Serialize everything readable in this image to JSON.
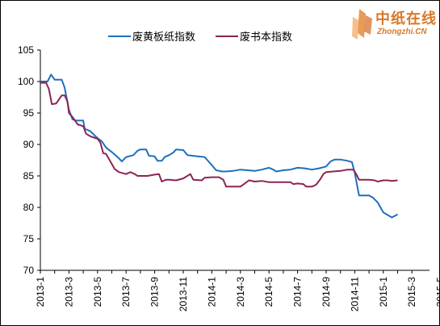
{
  "logo": {
    "name_cn": "中纸在线",
    "name_en": "Zhongzhi.CN",
    "color": "#d8782a"
  },
  "chart_data": {
    "type": "line",
    "title": "",
    "xlabel": "",
    "ylabel": "",
    "ylim": [
      70,
      105
    ],
    "yticks": [
      70,
      75,
      80,
      85,
      90,
      95,
      100,
      105
    ],
    "x_range": [
      "2013-1",
      "2015-6"
    ],
    "x_ticks": [
      "2013-1",
      "2013-3",
      "2013-5",
      "2013-7",
      "2013-9",
      "2013-11",
      "2014-1",
      "2014-3",
      "2014-5",
      "2014-7",
      "2014-9",
      "2014-11",
      "2015-1",
      "2015-3",
      "2015-5"
    ],
    "legend_position": "top",
    "grid": false,
    "series": [
      {
        "name": "废黄板纸指数",
        "color": "#1f6fbf",
        "points": [
          [
            0,
            100
          ],
          [
            0.5,
            100
          ],
          [
            0.75,
            101.1
          ],
          [
            1,
            100.3
          ],
          [
            1.5,
            100.3
          ],
          [
            1.7,
            99
          ],
          [
            2,
            95.5
          ],
          [
            2.25,
            94
          ],
          [
            2.5,
            93.8
          ],
          [
            3,
            93.8
          ],
          [
            3.1,
            92.5
          ],
          [
            3.5,
            92.1
          ],
          [
            4,
            91
          ],
          [
            4.3,
            90.5
          ],
          [
            4.6,
            89.5
          ],
          [
            5,
            88.8
          ],
          [
            5.3,
            88.2
          ],
          [
            5.5,
            87.8
          ],
          [
            5.7,
            87.3
          ],
          [
            6,
            88
          ],
          [
            6.5,
            88.3
          ],
          [
            6.8,
            89
          ],
          [
            7,
            89.2
          ],
          [
            7.4,
            89.2
          ],
          [
            7.6,
            88.2
          ],
          [
            8,
            88.1
          ],
          [
            8.2,
            87.4
          ],
          [
            8.5,
            87.4
          ],
          [
            8.7,
            88
          ],
          [
            9,
            88.3
          ],
          [
            9.3,
            88.7
          ],
          [
            9.5,
            89.2
          ],
          [
            10,
            89.1
          ],
          [
            10.3,
            88.3
          ],
          [
            11,
            88.1
          ],
          [
            11.5,
            88
          ],
          [
            12,
            86.7
          ],
          [
            12.3,
            85.9
          ],
          [
            12.7,
            85.7
          ],
          [
            13,
            85.7
          ],
          [
            13.5,
            85.8
          ],
          [
            14,
            86
          ],
          [
            14.5,
            85.9
          ],
          [
            15,
            85.8
          ],
          [
            15.5,
            86
          ],
          [
            16,
            86.3
          ],
          [
            16.3,
            86
          ],
          [
            16.5,
            85.7
          ],
          [
            17,
            85.9
          ],
          [
            17.5,
            86
          ],
          [
            18,
            86.3
          ],
          [
            18.5,
            86.2
          ],
          [
            19,
            86
          ],
          [
            19.5,
            86.2
          ],
          [
            20,
            86.5
          ],
          [
            20.3,
            87.3
          ],
          [
            20.6,
            87.6
          ],
          [
            21,
            87.6
          ],
          [
            21.5,
            87.4
          ],
          [
            21.8,
            87.2
          ],
          [
            22,
            85.5
          ],
          [
            22.3,
            81.9
          ],
          [
            23,
            81.9
          ],
          [
            23.3,
            81.5
          ],
          [
            23.6,
            80.8
          ],
          [
            24,
            79.2
          ],
          [
            24.3,
            78.8
          ],
          [
            24.6,
            78.4
          ],
          [
            25,
            78.9
          ]
        ]
      },
      {
        "name": "废书本指数",
        "color": "#8c2454",
        "points": [
          [
            0,
            99.8
          ],
          [
            0.4,
            99.8
          ],
          [
            0.6,
            98.8
          ],
          [
            0.8,
            96.4
          ],
          [
            1.1,
            96.5
          ],
          [
            1.5,
            97.8
          ],
          [
            1.7,
            97.8
          ],
          [
            1.9,
            96.8
          ],
          [
            2,
            95
          ],
          [
            2.3,
            94.2
          ],
          [
            2.6,
            93.2
          ],
          [
            3,
            92.9
          ],
          [
            3.2,
            91.7
          ],
          [
            3.5,
            91.3
          ],
          [
            4,
            90.9
          ],
          [
            4.2,
            90.3
          ],
          [
            4.4,
            88.6
          ],
          [
            4.6,
            88.5
          ],
          [
            5,
            86.9
          ],
          [
            5.2,
            86.1
          ],
          [
            5.5,
            85.6
          ],
          [
            6,
            85.3
          ],
          [
            6.3,
            85.6
          ],
          [
            6.6,
            85.3
          ],
          [
            6.8,
            85
          ],
          [
            7.5,
            85
          ],
          [
            8,
            85.2
          ],
          [
            8.3,
            85.3
          ],
          [
            8.5,
            84.1
          ],
          [
            8.8,
            84.4
          ],
          [
            9,
            84.4
          ],
          [
            9.5,
            84.3
          ],
          [
            10,
            84.6
          ],
          [
            10.5,
            85.3
          ],
          [
            10.7,
            84.4
          ],
          [
            11.3,
            84.3
          ],
          [
            11.5,
            84.7
          ],
          [
            12,
            84.8
          ],
          [
            12.5,
            84.8
          ],
          [
            12.8,
            84.4
          ],
          [
            13,
            83.3
          ],
          [
            13.5,
            83.3
          ],
          [
            14,
            83.3
          ],
          [
            14.3,
            83.8
          ],
          [
            14.6,
            84.3
          ],
          [
            15,
            84.1
          ],
          [
            15.5,
            84.2
          ],
          [
            16,
            84
          ],
          [
            17,
            84
          ],
          [
            17.5,
            84
          ],
          [
            17.7,
            83.7
          ],
          [
            18,
            83.8
          ],
          [
            18.4,
            83.7
          ],
          [
            18.6,
            83.3
          ],
          [
            19,
            83.3
          ],
          [
            19.3,
            83.6
          ],
          [
            19.6,
            84.5
          ],
          [
            19.8,
            85.3
          ],
          [
            20,
            85.6
          ],
          [
            20.5,
            85.7
          ],
          [
            21,
            85.8
          ],
          [
            21.5,
            86
          ],
          [
            21.9,
            86
          ],
          [
            22.1,
            85.3
          ],
          [
            22.3,
            84.4
          ],
          [
            23,
            84.4
          ],
          [
            23.4,
            84.3
          ],
          [
            23.6,
            84.1
          ],
          [
            24,
            84.3
          ],
          [
            24.3,
            84.3
          ],
          [
            24.6,
            84.2
          ],
          [
            25,
            84.3
          ]
        ]
      }
    ]
  }
}
